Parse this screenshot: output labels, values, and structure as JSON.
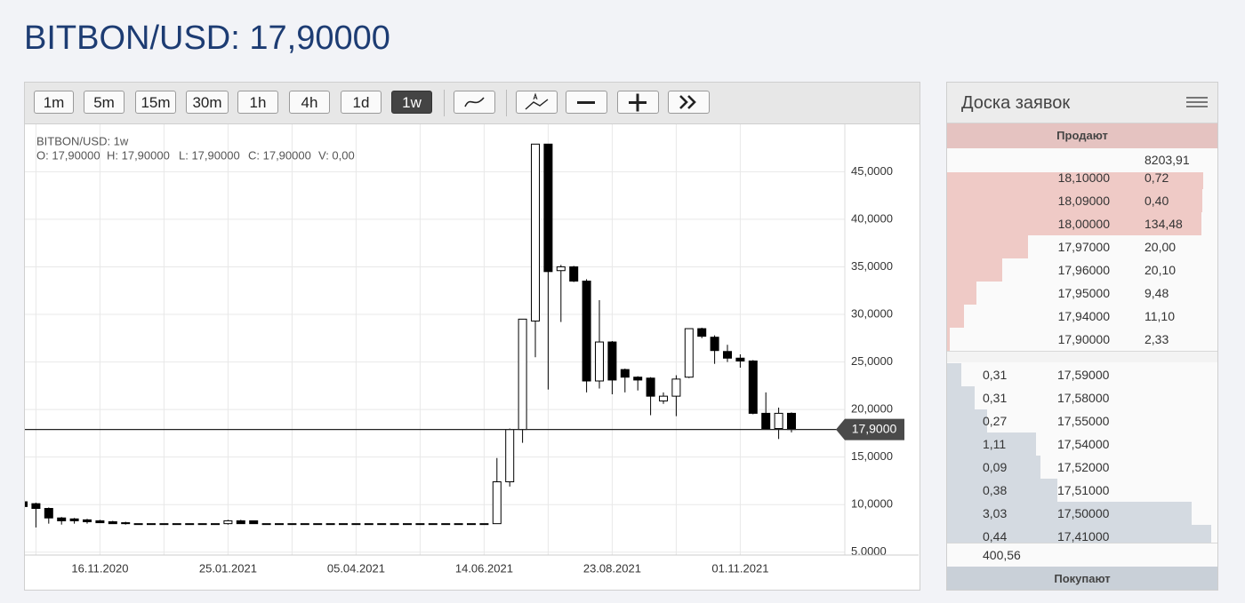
{
  "header": {
    "title": "BITBON/USD: 17,90000"
  },
  "toolbar": {
    "intervals": [
      "1m",
      "5m",
      "15m",
      "30m",
      "1h",
      "4h",
      "1d",
      "1w"
    ],
    "active": 7
  },
  "chart_data": {
    "type": "candlestick",
    "title": "BITBON/USD: 1w",
    "info": [
      "O: 17,90000",
      "H: 17,90000",
      "L: 17,90000",
      "C: 17,90000",
      "V: 0,00"
    ],
    "categories": [
      null,
      null,
      null,
      null,
      null,
      null,
      "16.11.2020",
      null,
      null,
      null,
      null,
      null,
      null,
      null,
      null,
      null,
      "25.01.2021",
      null,
      null,
      null,
      null,
      null,
      null,
      null,
      null,
      null,
      "05.04.2021",
      null,
      null,
      null,
      null,
      null,
      null,
      null,
      null,
      null,
      "14.06.2021",
      null,
      null,
      null,
      null,
      null,
      null,
      null,
      null,
      null,
      "23.08.2021",
      null,
      null,
      null,
      null,
      null,
      null,
      null,
      null,
      null,
      "01.11.2021",
      null,
      null,
      null,
      null
    ],
    "open": [
      10.3,
      10.1,
      9.6,
      8.6,
      8.5,
      8.4,
      8.3,
      8.2,
      8.1,
      8,
      8,
      8,
      8,
      8,
      8,
      8,
      8.0,
      8.3,
      8.3,
      8,
      8,
      8,
      8,
      8,
      8,
      8,
      8,
      8,
      8,
      8,
      8,
      8,
      8,
      8,
      8,
      8,
      8,
      8.0,
      12.4,
      17.9,
      29.3,
      47.9,
      34.6,
      35.0,
      33.5,
      23.0,
      27.1,
      24.2,
      23.4,
      23.3,
      20.9,
      21.4,
      23.4,
      28.5,
      27.6,
      26.1,
      25.4,
      25.1,
      19.6,
      18.0,
      19.6
    ],
    "high": [
      10.4,
      10.2,
      9.7,
      8.7,
      8.6,
      8.5,
      8.4,
      8.3,
      8.2,
      8,
      8,
      8,
      8,
      8,
      8,
      8,
      8.4,
      8.4,
      8.3,
      8,
      8,
      8,
      8,
      8,
      8,
      8,
      8,
      8,
      8,
      8,
      8,
      8,
      8,
      8,
      8,
      8,
      8,
      14.9,
      18.0,
      29.5,
      47.9,
      47.9,
      35.2,
      35.1,
      33.7,
      31.5,
      27.2,
      24.3,
      23.5,
      23.4,
      21.8,
      23.6,
      28.5,
      28.6,
      27.8,
      26.8,
      25.8,
      25.2,
      21.8,
      20.2,
      19.7
    ],
    "low": [
      9.6,
      7.6,
      8.0,
      7.9,
      8.0,
      8.0,
      8.1,
      8.0,
      7.9,
      8,
      8,
      8,
      8,
      8,
      8,
      8,
      7.9,
      8.0,
      8.0,
      8,
      8,
      8,
      8,
      8,
      8,
      8,
      8,
      8,
      8,
      8,
      8,
      8,
      8,
      8,
      8,
      8,
      8,
      8.0,
      11.9,
      16.5,
      25.5,
      22.1,
      29.2,
      33.4,
      21.8,
      22.2,
      21.6,
      21.8,
      22.0,
      19.4,
      20.6,
      19.3,
      23.3,
      27.5,
      24.8,
      25.0,
      24.4,
      19.5,
      17.9,
      16.9,
      17.6
    ],
    "close": [
      9.8,
      9.6,
      8.6,
      8.3,
      8.3,
      8.2,
      8.1,
      8.0,
      8.0,
      8,
      8,
      8,
      8,
      8,
      8,
      8,
      8.3,
      8.0,
      8.0,
      8,
      8,
      8,
      8,
      8,
      8,
      8,
      8,
      8,
      8,
      8,
      8,
      8,
      8,
      8,
      8,
      8,
      8,
      12.4,
      17.9,
      29.5,
      47.9,
      34.5,
      35.0,
      33.5,
      23.0,
      27.1,
      23.1,
      23.4,
      23.1,
      21.4,
      21.4,
      23.2,
      28.5,
      27.7,
      26.2,
      25.4,
      25.1,
      19.6,
      18.0,
      19.6,
      17.9
    ],
    "up_color": "#ffffff",
    "down_color": "#000000",
    "ylim": [
      4.7,
      49.7
    ],
    "yticks": [
      {
        "value": 5,
        "label": "5,0000"
      },
      {
        "value": 10,
        "label": "10,0000"
      },
      {
        "value": 15,
        "label": "15,0000"
      },
      {
        "value": 20,
        "label": "20,0000"
      },
      {
        "value": 25,
        "label": "25,0000"
      },
      {
        "value": 30,
        "label": "30,0000"
      },
      {
        "value": 35,
        "label": "35,0000"
      },
      {
        "value": 40,
        "label": "40,0000"
      },
      {
        "value": 45,
        "label": "45,0000"
      }
    ],
    "grid": true,
    "last_price": {
      "value": 17.9,
      "label": "17,9000"
    }
  },
  "order_book": {
    "title": "Доска заявок",
    "asks_label": "Продают",
    "asks_total": "8203,91",
    "asks": [
      [
        "18,10000",
        "0,72"
      ],
      [
        "18,09000",
        "0,40"
      ],
      [
        "18,00000",
        "134,48"
      ],
      [
        "17,97000",
        "20,00"
      ],
      [
        "17,96000",
        "20,10"
      ],
      [
        "17,95000",
        "9,48"
      ],
      [
        "17,94000",
        "11,10"
      ],
      [
        "17,90000",
        "2,33"
      ]
    ],
    "bids": [
      [
        "0,31",
        "17,59000"
      ],
      [
        "0,31",
        "17,58000"
      ],
      [
        "0,27",
        "17,55000"
      ],
      [
        "1,11",
        "17,54000"
      ],
      [
        "0,09",
        "17,52000"
      ],
      [
        "0,38",
        "17,51000"
      ],
      [
        "3,03",
        "17,50000"
      ],
      [
        "0,44",
        "17,41000"
      ]
    ],
    "bids_total": "400,56",
    "bids_label": "Покупают"
  }
}
